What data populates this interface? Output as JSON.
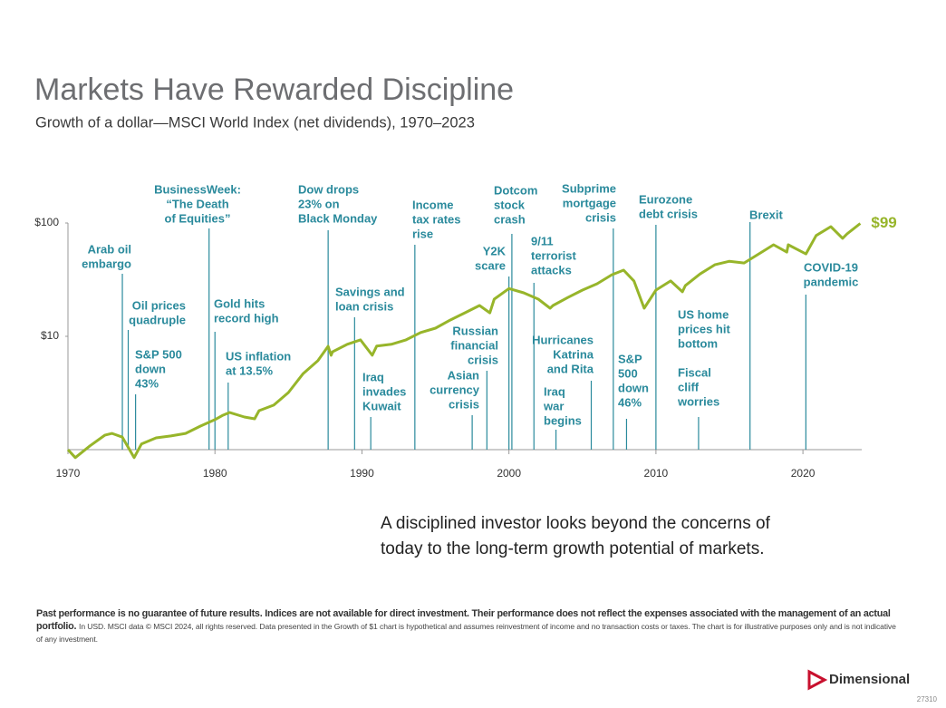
{
  "chart_data": {
    "type": "line",
    "title": "Markets Have Rewarded Discipline",
    "subtitle": "Growth of a dollar—MSCI World Index (net dividends), 1970–2023",
    "log_scale_y": true,
    "xlim": [
      1970,
      2024
    ],
    "ylim": [
      1,
      100
    ],
    "xticks": [
      1970,
      1980,
      1990,
      2000,
      2010,
      2020
    ],
    "yticks": [
      {
        "value": 10,
        "label": "$10"
      },
      {
        "value": 100,
        "label": "$100"
      }
    ],
    "series": [
      {
        "color": "#97b52a",
        "x": [
          1970,
          1970.5,
          1971.5,
          1972.5,
          1973,
          1973.7,
          1974.5,
          1975,
          1976,
          1977,
          1978,
          1979,
          1980,
          1980.5,
          1981,
          1982,
          1982.7,
          1983,
          1984,
          1985,
          1986,
          1987,
          1987.7,
          1987.9,
          1988,
          1989,
          1989.9,
          1990.7,
          1991,
          1992,
          1993,
          1994,
          1995,
          1996,
          1997,
          1998,
          1998.7,
          1999,
          2000,
          2001,
          2002,
          2002.8,
          2003,
          2004,
          2005,
          2006,
          2007,
          2007.8,
          2008.5,
          2009.2,
          2010,
          2011,
          2011.8,
          2012,
          2013,
          2014,
          2015,
          2016,
          2017,
          2018,
          2018.9,
          2019,
          2020.2,
          2020.9,
          2021.9,
          2022.7,
          2023,
          2023.9
        ],
        "values": [
          1.0,
          0.85,
          1.08,
          1.34,
          1.39,
          1.29,
          0.85,
          1.12,
          1.27,
          1.32,
          1.39,
          1.61,
          1.84,
          2.0,
          2.13,
          1.94,
          1.87,
          2.21,
          2.47,
          3.19,
          4.69,
          6.09,
          8.17,
          6.8,
          7.3,
          8.5,
          9.3,
          6.8,
          8.2,
          8.5,
          9.3,
          10.8,
          11.8,
          13.9,
          16.1,
          18.7,
          16.1,
          21.3,
          26.4,
          24.2,
          21.3,
          17.7,
          18.7,
          22.0,
          25.6,
          29.1,
          34.9,
          38.4,
          30.8,
          17.7,
          25.6,
          30.8,
          24.7,
          28.0,
          35.5,
          42.8,
          46.0,
          44.4,
          53.4,
          64.3,
          55.4,
          64.3,
          53.4,
          77.5,
          92.9,
          73.2,
          80.1,
          99
        ]
      }
    ],
    "end_label": "$99",
    "annotations": [
      {
        "x": 1973.7,
        "lines": [
          "Arab oil",
          "embargo"
        ]
      },
      {
        "x": 1974.1,
        "lines": [
          "Oil prices",
          "quadruple"
        ]
      },
      {
        "x": 1974.6,
        "lines": [
          "S&P 500",
          "down",
          "43%"
        ]
      },
      {
        "x": 1979.6,
        "lines": [
          "BusinessWeek:",
          "“The Death",
          "of Equities”"
        ]
      },
      {
        "x": 1980.0,
        "lines": [
          "Gold hits",
          "record high"
        ]
      },
      {
        "x": 1980.9,
        "lines": [
          "US inflation",
          "at 13.5%"
        ]
      },
      {
        "x": 1987.7,
        "lines": [
          "Dow drops",
          "23% on",
          "Black Monday"
        ]
      },
      {
        "x": 1989.5,
        "lines": [
          "Savings and",
          "loan crisis"
        ]
      },
      {
        "x": 1990.6,
        "lines": [
          "Iraq",
          "invades",
          "Kuwait"
        ]
      },
      {
        "x": 1993.6,
        "lines": [
          "Income",
          "tax rates",
          "rise"
        ]
      },
      {
        "x": 1998.5,
        "lines": [
          "Russian",
          "financial",
          "crisis"
        ]
      },
      {
        "x": 1997.5,
        "lines": [
          "Asian",
          "currency",
          "crisis"
        ]
      },
      {
        "x": 2000.0,
        "lines": [
          "Y2K",
          "scare"
        ]
      },
      {
        "x": 2000.2,
        "lines": [
          "Dotcom",
          "stock",
          "crash"
        ]
      },
      {
        "x": 2001.7,
        "lines": [
          "9/11",
          "terrorist",
          "attacks"
        ]
      },
      {
        "x": 2005.6,
        "lines": [
          "Hurricanes",
          "Katrina",
          "and Rita"
        ]
      },
      {
        "x": 2003.2,
        "lines": [
          "Iraq",
          "war",
          "begins"
        ]
      },
      {
        "x": 2007.1,
        "lines": [
          "Subprime",
          "mortgage",
          "crisis"
        ]
      },
      {
        "x": 2008.0,
        "lines": [
          "S&P",
          "500",
          "down",
          "46%"
        ]
      },
      {
        "x": 2010.0,
        "lines": [
          "Eurozone",
          "debt crisis"
        ]
      },
      {
        "lines": [
          "US home",
          "prices hit",
          "bottom"
        ]
      },
      {
        "x": 2012.9,
        "lines": [
          "Fiscal",
          "cliff",
          "worries"
        ]
      },
      {
        "x": 2016.4,
        "lines": [
          "Brexit"
        ]
      },
      {
        "x": 2020.2,
        "lines": [
          "COVID-19",
          "pandemic"
        ]
      }
    ]
  },
  "tagline": [
    "A disciplined investor looks beyond the concerns of",
    "today to the long-term growth potential of markets."
  ],
  "footnote": {
    "bold": "Past performance is no guarantee of future results. Indices are not available for direct investment. Their performance does not reflect the expenses associated with the management of an actual portfolio.",
    "normal": "In USD. MSCI data © MSCI 2024, all rights reserved. Data presented in the Growth of $1 chart is hypothetical and assumes reinvestment of income and no transaction costs or taxes. The chart is for illustrative purposes only and is not indicative of any investment."
  },
  "logo": "Dimensional",
  "code": "27310"
}
